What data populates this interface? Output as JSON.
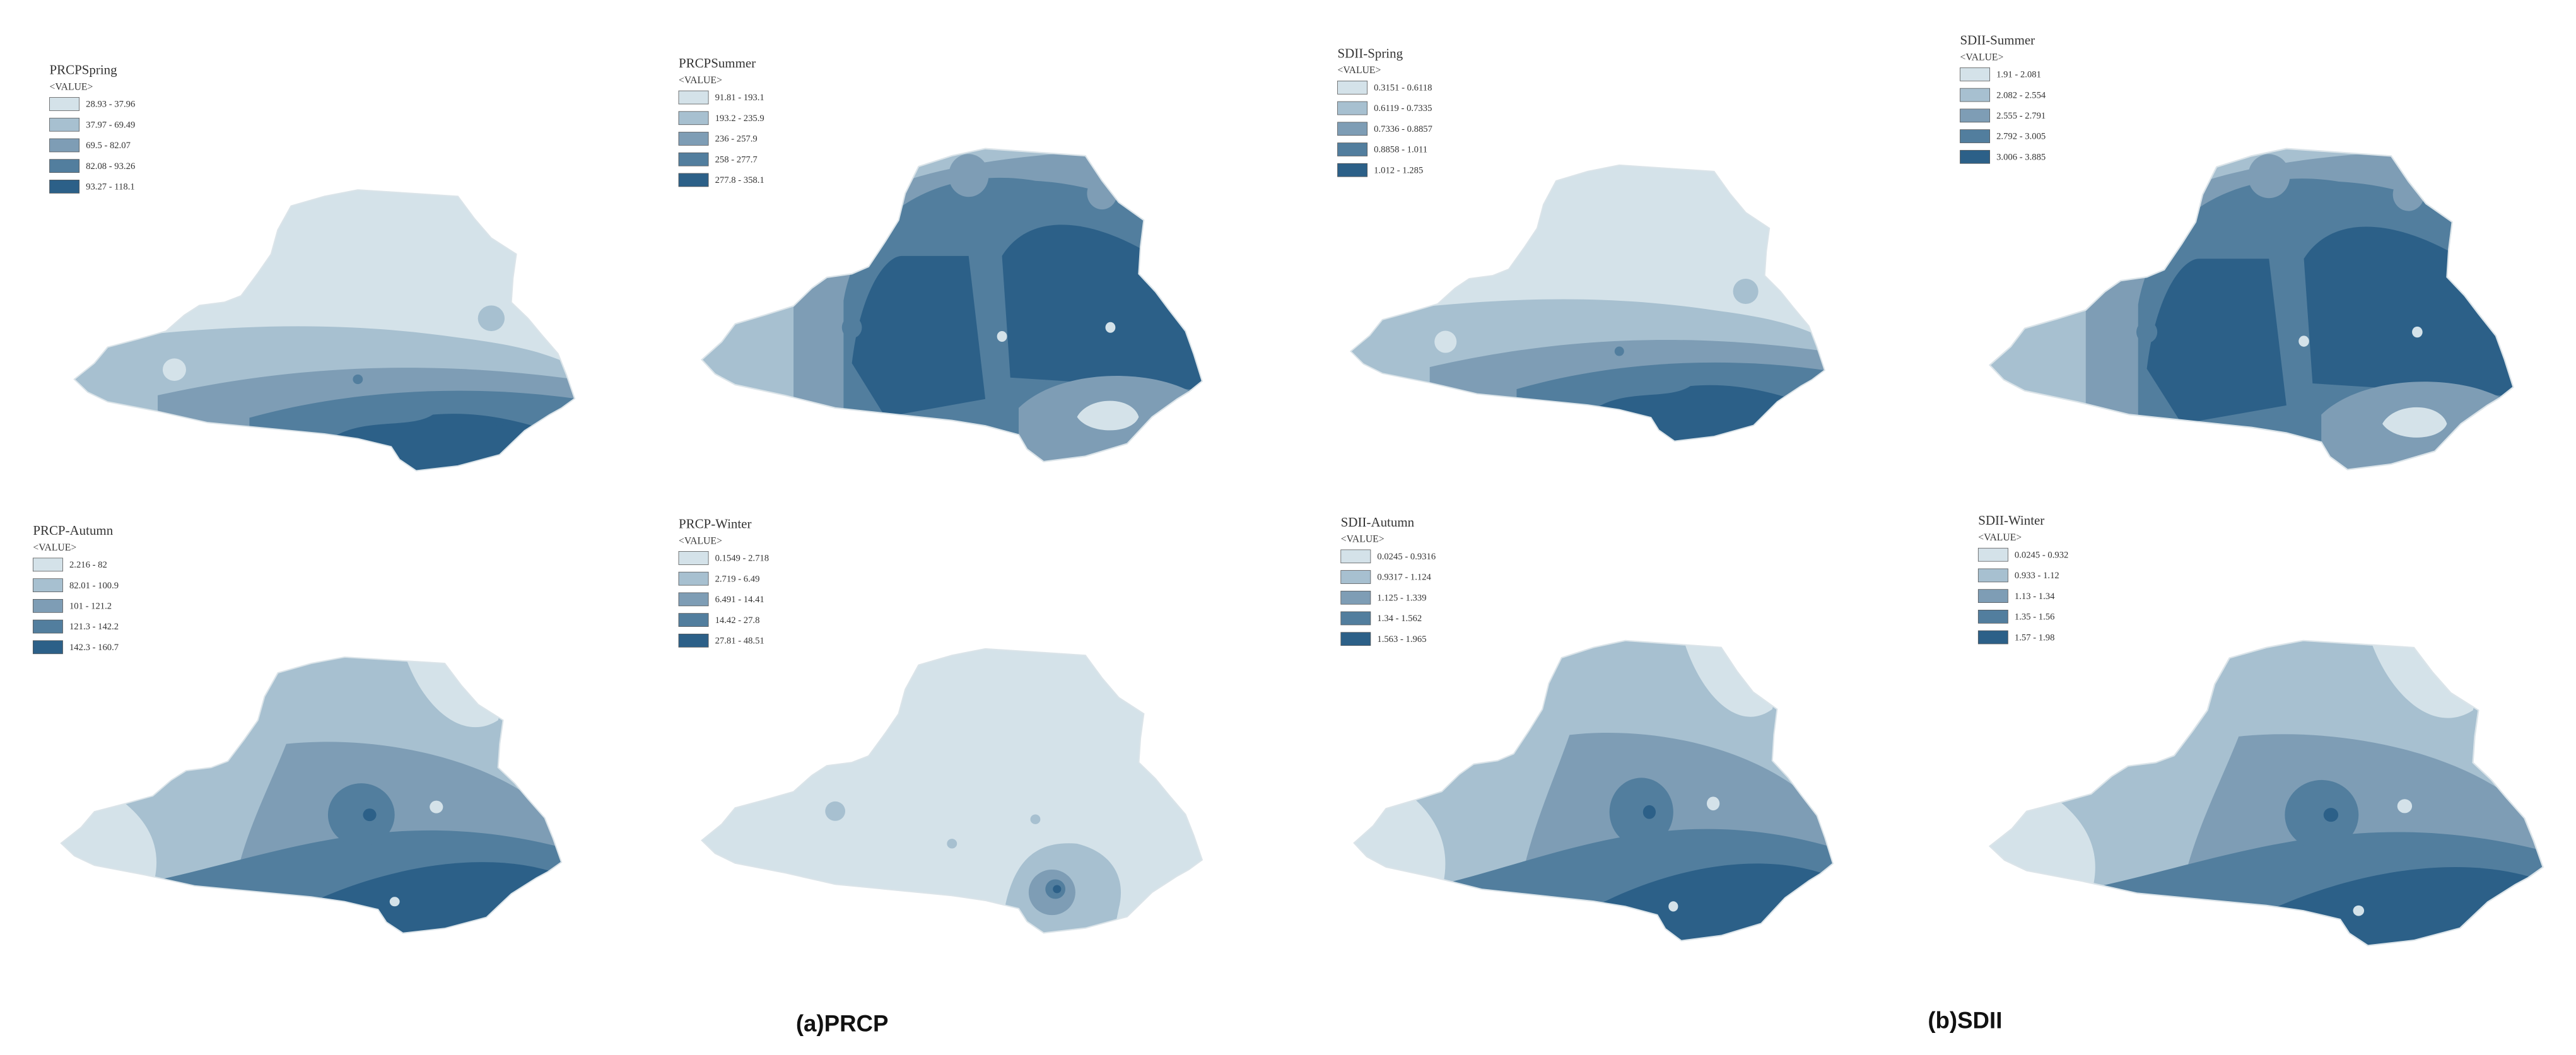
{
  "class_colors": [
    "#d4e2e9",
    "#a7c0d0",
    "#7e9db5",
    "#527e9e",
    "#2c6088"
  ],
  "panels": [
    {
      "title": "PRCPSpring",
      "value_header": "<VALUE>",
      "classes": [
        "28.93 - 37.96",
        "37.97 - 69.49",
        "69.5 - 82.07",
        "82.08 - 93.26",
        "93.27 - 118.1"
      ]
    },
    {
      "title": "PRCPSummer",
      "value_header": "<VALUE>",
      "classes": [
        "91.81 - 193.1",
        "193.2 - 235.9",
        "236 - 257.9",
        "258 - 277.7",
        "277.8 - 358.1"
      ]
    },
    {
      "title": "SDII-Spring",
      "value_header": "<VALUE>",
      "classes": [
        "0.3151 - 0.6118",
        "0.6119 - 0.7335",
        "0.7336 - 0.8857",
        "0.8858 - 1.011",
        "1.012 - 1.285"
      ]
    },
    {
      "title": "SDII-Summer",
      "value_header": "<VALUE>",
      "classes": [
        "1.91 - 2.081",
        "2.082 - 2.554",
        "2.555 - 2.791",
        "2.792 - 3.005",
        "3.006 - 3.885"
      ]
    },
    {
      "title": "PRCP-Autumn",
      "value_header": "<VALUE>",
      "classes": [
        "2.216 - 82",
        "82.01 - 100.9",
        "101 - 121.2",
        "121.3 - 142.2",
        "142.3 - 160.7"
      ]
    },
    {
      "title": "PRCP-Winter",
      "value_header": "<VALUE>",
      "classes": [
        "0.1549 - 2.718",
        "2.719 - 6.49",
        "6.491 - 14.41",
        "14.42 - 27.8",
        "27.81 - 48.51"
      ]
    },
    {
      "title": "SDII-Autumn",
      "value_header": "<VALUE>",
      "classes": [
        "0.0245 - 0.9316",
        "0.9317 - 1.124",
        "1.125 - 1.339",
        "1.34 - 1.562",
        "1.563 - 1.965"
      ]
    },
    {
      "title": "SDII-Winter",
      "value_header": "<VALUE>",
      "classes": [
        "0.0245 - 0.932",
        "0.933 - 1.12",
        "1.13 - 1.34",
        "1.35 - 1.56",
        "1.57 - 1.98"
      ]
    }
  ],
  "captions": [
    "(a)PRCP",
    "(b)SDII"
  ]
}
